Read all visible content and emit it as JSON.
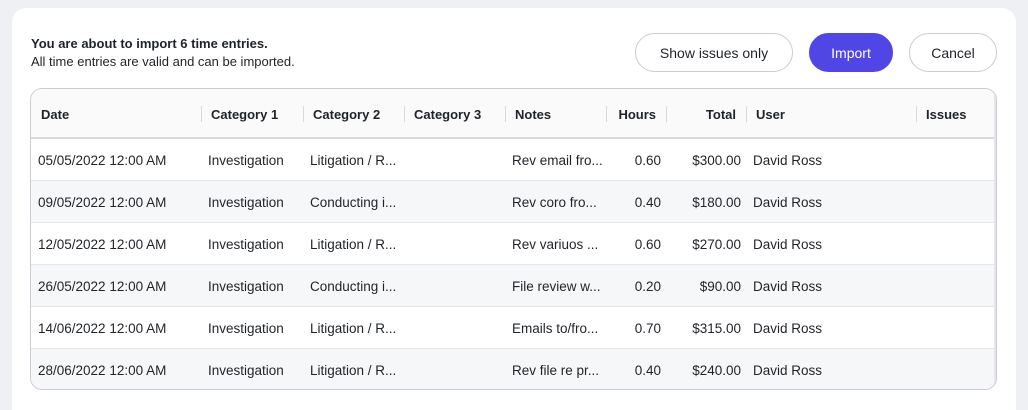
{
  "summary": {
    "prefix": "You are about to import ",
    "count": "6",
    "suffix": " time entries.",
    "subtext": "All time entries are valid and can be imported."
  },
  "actions": {
    "show_issues_label": "Show issues only",
    "import_label": "Import",
    "cancel_label": "Cancel"
  },
  "colors": {
    "primary": "#4f46e5"
  },
  "table": {
    "columns": {
      "date": "Date",
      "category1": "Category 1",
      "category2": "Category 2",
      "category3": "Category 3",
      "notes": "Notes",
      "hours": "Hours",
      "total": "Total",
      "user": "User",
      "issues": "Issues"
    },
    "rows": [
      {
        "date": "05/05/2022 12:00 AM",
        "category1": "Investigation",
        "category2": "Litigation / R...",
        "category3": "",
        "notes": "Rev email fro...",
        "hours": "0.60",
        "total": "$300.00",
        "user": "David Ross",
        "issues": ""
      },
      {
        "date": "09/05/2022 12:00 AM",
        "category1": "Investigation",
        "category2": "Conducting i...",
        "category3": "",
        "notes": "Rev coro fro...",
        "hours": "0.40",
        "total": "$180.00",
        "user": "David Ross",
        "issues": ""
      },
      {
        "date": "12/05/2022 12:00 AM",
        "category1": "Investigation",
        "category2": "Litigation / R...",
        "category3": "",
        "notes": "Rev variuos ...",
        "hours": "0.60",
        "total": "$270.00",
        "user": "David Ross",
        "issues": ""
      },
      {
        "date": "26/05/2022 12:00 AM",
        "category1": "Investigation",
        "category2": "Conducting i...",
        "category3": "",
        "notes": "File review w...",
        "hours": "0.20",
        "total": "$90.00",
        "user": "David Ross",
        "issues": ""
      },
      {
        "date": "14/06/2022 12:00 AM",
        "category1": "Investigation",
        "category2": "Litigation / R...",
        "category3": "",
        "notes": "Emails to/fro...",
        "hours": "0.70",
        "total": "$315.00",
        "user": "David Ross",
        "issues": ""
      },
      {
        "date": "28/06/2022 12:00 AM",
        "category1": "Investigation",
        "category2": "Litigation / R...",
        "category3": "",
        "notes": "Rev file re pr...",
        "hours": "0.40",
        "total": "$240.00",
        "user": "David Ross",
        "issues": ""
      }
    ]
  }
}
